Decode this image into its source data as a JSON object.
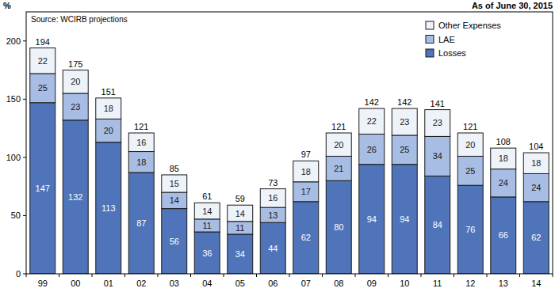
{
  "chart_data": {
    "type": "bar",
    "stacked": true,
    "data_labels": true,
    "grid": false,
    "legend": "upper right",
    "ylabel": "%",
    "subtitle": "As of June 30, 2015",
    "annotations": [
      "Source: WCIRB projections"
    ],
    "categories": [
      "99",
      "00",
      "01",
      "02",
      "03",
      "04",
      "05",
      "06",
      "07",
      "08",
      "09",
      "10",
      "11",
      "12",
      "13",
      "14"
    ],
    "series": [
      {
        "name": "Losses",
        "color": "#4f74b9",
        "values": [
          147,
          132,
          113,
          87,
          56,
          36,
          34,
          44,
          62,
          80,
          94,
          94,
          84,
          76,
          66,
          62
        ]
      },
      {
        "name": "LAE",
        "color": "#a8bde4",
        "values": [
          25,
          23,
          20,
          18,
          14,
          11,
          11,
          13,
          17,
          21,
          26,
          25,
          34,
          25,
          24,
          24
        ]
      },
      {
        "name": "Other Expenses",
        "color": "#eef2f9",
        "values": [
          22,
          20,
          18,
          16,
          15,
          14,
          14,
          16,
          18,
          20,
          22,
          23,
          23,
          20,
          18,
          18
        ]
      }
    ],
    "totals": [
      194,
      175,
      151,
      121,
      85,
      61,
      59,
      73,
      97,
      121,
      142,
      142,
      141,
      121,
      108,
      104
    ],
    "ylim": [
      0,
      225
    ],
    "yticks": [
      0,
      50,
      100,
      150,
      200
    ]
  }
}
